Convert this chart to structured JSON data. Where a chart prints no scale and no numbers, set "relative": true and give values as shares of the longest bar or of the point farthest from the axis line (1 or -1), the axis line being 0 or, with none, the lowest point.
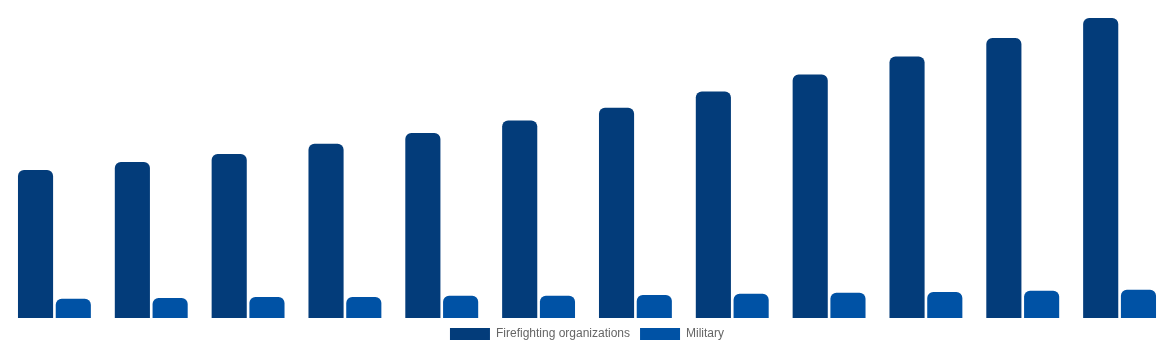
{
  "chart_data": {
    "type": "bar",
    "relative": true,
    "categories": [
      null,
      null,
      null,
      null,
      null,
      null,
      null,
      null,
      null,
      null,
      null,
      null
    ],
    "series": [
      {
        "name": "Firefighting organizations",
        "color": "#033c7a",
        "values": [
          0.493,
          0.52,
          0.547,
          0.581,
          0.617,
          0.658,
          0.701,
          0.755,
          0.812,
          0.872,
          0.933,
          1
        ]
      },
      {
        "name": "Military",
        "color": "#0052a5",
        "values": [
          0.064,
          0.067,
          0.07,
          0.07,
          0.074,
          0.074,
          0.077,
          0.081,
          0.084,
          0.087,
          0.091,
          0.094
        ]
      }
    ],
    "legend": "bottom",
    "grid": false
  }
}
